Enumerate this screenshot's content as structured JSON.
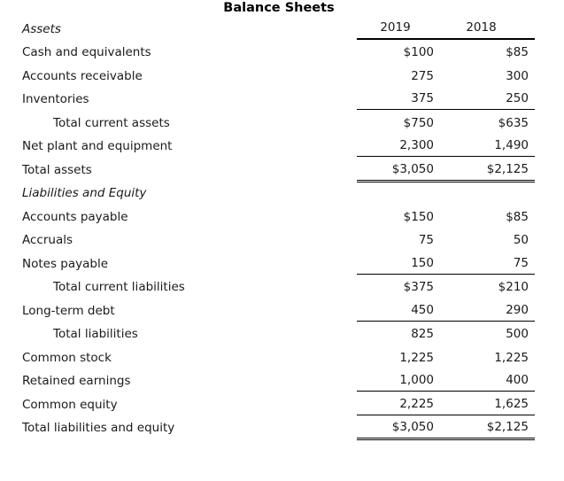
{
  "title": "Balance Sheets",
  "header": {
    "section_label": "Assets",
    "col_2019": "2019",
    "col_2018": "2018"
  },
  "rows": [
    {
      "label": "Cash and equivalents",
      "y2019": "$100",
      "y2018": "$85"
    },
    {
      "label": "Accounts receivable",
      "y2019": "275",
      "y2018": "300"
    },
    {
      "label": "Inventories",
      "y2019": "375",
      "y2018": "250"
    },
    {
      "label": "Total current assets",
      "y2019": "$750",
      "y2018": "$635"
    },
    {
      "label": "Net plant and equipment",
      "y2019": "2,300",
      "y2018": "1,490"
    },
    {
      "label": "Total assets",
      "y2019": "$3,050",
      "y2018": "$2,125"
    },
    {
      "label": "Liabilities and Equity",
      "y2019": "",
      "y2018": ""
    },
    {
      "label": "Accounts payable",
      "y2019": "$150",
      "y2018": "$85"
    },
    {
      "label": "Accruals",
      "y2019": "75",
      "y2018": "50"
    },
    {
      "label": "Notes payable",
      "y2019": "150",
      "y2018": "75"
    },
    {
      "label": "Total current liabilities",
      "y2019": "$375",
      "y2018": "$210"
    },
    {
      "label": "Long-term debt",
      "y2019": "450",
      "y2018": "290"
    },
    {
      "label": "Total liabilities",
      "y2019": "825",
      "y2018": "500"
    },
    {
      "label": "Common stock",
      "y2019": "1,225",
      "y2018": "1,225"
    },
    {
      "label": "Retained earnings",
      "y2019": "1,000",
      "y2018": "400"
    },
    {
      "label": "Common equity",
      "y2019": "2,225",
      "y2018": "1,625"
    },
    {
      "label": "Total liabilities and equity",
      "y2019": "$3,050",
      "y2018": "$2,125"
    }
  ]
}
